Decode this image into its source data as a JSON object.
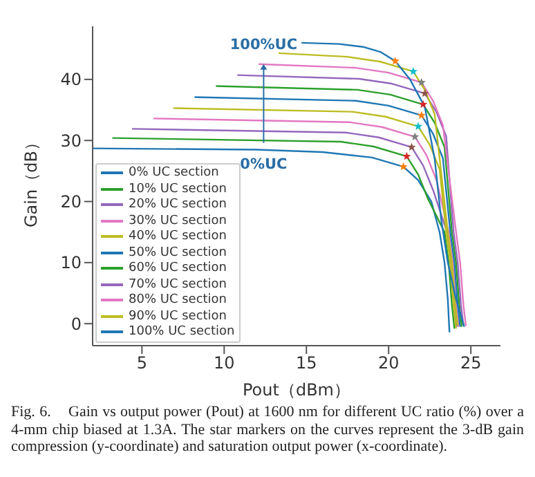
{
  "chart_data": {
    "type": "line",
    "xlabel": "Pout（dBm）",
    "ylabel": "Gain（dB）",
    "xlim": [
      2,
      26.8
    ],
    "ylim": [
      -3.6,
      48.7
    ],
    "xticks": [
      5,
      10,
      15,
      20,
      25
    ],
    "yticks": [
      0,
      10,
      20,
      30,
      40
    ],
    "grid": false,
    "legend": "bottom left",
    "line_style": "solid",
    "series": [
      {
        "name": "0% UC section",
        "color": "#1f77b4",
        "x": [
          2,
          12,
          16,
          19,
          20.9,
          21.8,
          22.6,
          23.1,
          23.4,
          23.6,
          23.7
        ],
        "values": [
          28.7,
          28.5,
          28.1,
          27.2,
          25.7,
          23.5,
          20,
          15,
          10,
          4,
          -1.4
        ]
      },
      {
        "name": "10% UC section",
        "color": "#2ca02c",
        "x": [
          3.2,
          17.1,
          19.1,
          21.1,
          21.8,
          22.4,
          23.4,
          23.65,
          23.85,
          24.0
        ],
        "values": [
          30.4,
          29.8,
          29.0,
          27.4,
          24.4,
          20.4,
          15,
          10,
          3,
          -0.8
        ]
      },
      {
        "name": "20% UC section",
        "color": "#9467bd",
        "x": [
          4.4,
          17.4,
          19.4,
          21.4,
          22.1,
          22.7,
          23.55,
          23.8,
          24.0,
          24.15
        ],
        "values": [
          31.9,
          31.3,
          30.5,
          28.9,
          25.9,
          21.9,
          15,
          10,
          3,
          -0.5
        ]
      },
      {
        "name": "30% UC section",
        "color": "#e377c2",
        "x": [
          5.7,
          17.6,
          19.6,
          21.6,
          22.3,
          22.9,
          23.65,
          23.9,
          24.1,
          24.25
        ],
        "values": [
          33.6,
          33.0,
          32.2,
          30.6,
          27.6,
          23.6,
          15,
          10,
          3,
          -0.5
        ]
      },
      {
        "name": "40% UC section",
        "color": "#bcbd22",
        "x": [
          6.9,
          17.8,
          19.8,
          21.8,
          22.5,
          23.1,
          23.5,
          23.75,
          23.95,
          24.1
        ],
        "values": [
          35.3,
          34.7,
          33.9,
          32.3,
          29.3,
          25.3,
          15,
          10,
          3,
          -0.8
        ]
      },
      {
        "name": "50% UC section",
        "color": "#1f77b4",
        "x": [
          8.2,
          18.0,
          20.0,
          22.0,
          22.7,
          23.3,
          23.75,
          24.0,
          24.2,
          24.35
        ],
        "values": [
          37.1,
          36.5,
          35.7,
          34.1,
          31.1,
          27.1,
          15,
          10,
          3,
          -0.5
        ]
      },
      {
        "name": "60% UC section",
        "color": "#2ca02c",
        "x": [
          9.5,
          18.1,
          20.1,
          22.1,
          22.8,
          23.4,
          23.85,
          24.1,
          24.3,
          24.45
        ],
        "values": [
          38.9,
          38.3,
          37.5,
          35.9,
          32.9,
          28.9,
          15,
          10,
          3,
          -0.5
        ]
      },
      {
        "name": "70% UC section",
        "color": "#9467bd",
        "x": [
          10.8,
          18.2,
          20.2,
          22.2,
          22.9,
          23.5,
          23.95,
          24.2,
          24.4,
          24.55
        ],
        "values": [
          40.7,
          40.1,
          39.3,
          37.7,
          34.7,
          30.7,
          15,
          10,
          3,
          -0.3
        ]
      },
      {
        "name": "80% UC section",
        "color": "#e377c2",
        "x": [
          12.1,
          18.0,
          20.0,
          22.0,
          22.7,
          23.3,
          24.1,
          24.35,
          24.55,
          24.7
        ],
        "values": [
          42.5,
          41.9,
          41.1,
          39.5,
          36.5,
          32.5,
          15,
          10,
          3,
          -0.4
        ]
      },
      {
        "name": "90% UC section",
        "color": "#bcbd22",
        "x": [
          13.3,
          17.5,
          19.5,
          21.5,
          22.2,
          22.8,
          23.6,
          23.85,
          24.05,
          24.2
        ],
        "values": [
          44.3,
          43.7,
          42.9,
          41.3,
          38.3,
          34.3,
          15,
          10,
          3,
          -0.3
        ]
      },
      {
        "name": "100% UC section",
        "color": "#1f77b4",
        "x": [
          14.7,
          17,
          18.5,
          19.5,
          20.4,
          21.3,
          22.2,
          22.8,
          23.2,
          23.6,
          24.1,
          24.6
        ],
        "values": [
          46,
          45.8,
          45.3,
          44.5,
          43,
          40,
          35.5,
          27,
          17,
          10,
          4,
          -0.5
        ]
      },
      {
        "type": "scatter",
        "marker": "star",
        "x": [
          20.9,
          21.1,
          21.4,
          21.6,
          21.8,
          22.0,
          22.1,
          22.2,
          22.0,
          21.5,
          20.4
        ],
        "values": [
          25.7,
          27.4,
          28.9,
          30.6,
          32.3,
          34.1,
          35.9,
          37.7,
          39.5,
          41.3,
          43.0
        ],
        "colors": [
          "#ff7f0e",
          "#d62728",
          "#8c564b",
          "#7f7f7f",
          "#17becf",
          "#ff7f0e",
          "#d62728",
          "#8c564b",
          "#7f7f7f",
          "#17becf",
          "#ff7f0e"
        ]
      }
    ],
    "annotations": [
      {
        "text": "100%UC",
        "x": 12.4,
        "y": 42.5
      },
      {
        "text": "0%UC",
        "x": 12.4,
        "y": 28.7
      },
      "Fig. 6.    Gain vs output power (Pout) at 1600 nm for different UC ratio (%) over a 4-mm chip biased at 1.3A. The star markers on the curves represent the 3-dB gain compression (y-coordinate) and saturation output power (x-coordinate)."
    ]
  }
}
